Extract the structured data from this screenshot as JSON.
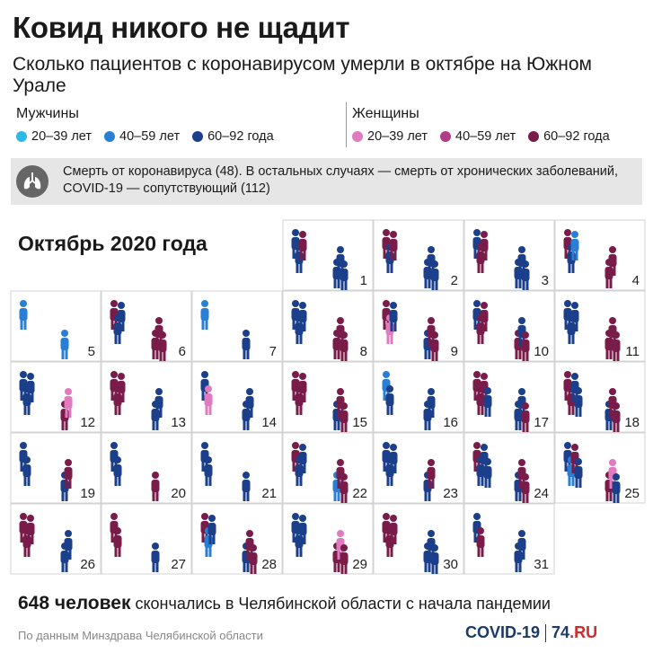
{
  "title": "Ковид никого не щадит",
  "subtitle": "Сколько пациентов с коронавирусом умерли в октябре на Южном Урале",
  "legend": {
    "men": {
      "label": "Мужчины",
      "items": [
        {
          "label": "20–39 лет",
          "color": "#2fb8e6"
        },
        {
          "label": "40–59 лет",
          "color": "#2a7fd4"
        },
        {
          "label": "60–92 года",
          "color": "#1b3f8a"
        }
      ]
    },
    "women": {
      "label": "Женщины",
      "items": [
        {
          "label": "20–39 лет",
          "color": "#e07bbf"
        },
        {
          "label": "40–59 лет",
          "color": "#b23b87"
        },
        {
          "label": "60–92 года",
          "color": "#7a1c4a"
        }
      ]
    }
  },
  "note": {
    "icon": "lungs-icon",
    "text": "Смерть от коронавируса (48). В остальных случаях — смерть от хронических заболеваний, COVID-19 — сопутствующий (112)"
  },
  "month_label": "Октябрь 2020 года",
  "chart_data": {
    "type": "calendar-pictogram",
    "series_colors": {
      "m2039": "#2fb8e6",
      "m4059": "#2a7fd4",
      "m6092": "#1b3f8a",
      "w2039": "#e07bbf",
      "w4059": "#b23b87",
      "w6092": "#7a1c4a"
    },
    "days": [
      {
        "day": 1,
        "people": [
          "m6092",
          "m6092",
          "m6092",
          "m6092",
          "w6092",
          "m6092"
        ]
      },
      {
        "day": 2,
        "people": [
          "w6092",
          "m6092",
          "m6092",
          "m6092",
          "w6092",
          "m6092"
        ]
      },
      {
        "day": 3,
        "people": [
          "m6092",
          "m6092",
          "w6092",
          "m6092",
          "w6092",
          "m6092"
        ]
      },
      {
        "day": 4,
        "people": [
          "w6092",
          "w6092",
          "m6092",
          "w6092",
          "m4059"
        ]
      },
      {
        "day": 5,
        "people": [
          "m4059",
          "m4059"
        ]
      },
      {
        "day": 6,
        "people": [
          "w6092",
          "w6092",
          "m6092",
          "w6092",
          "m6092",
          "w6092"
        ]
      },
      {
        "day": 7,
        "people": [
          "m4059",
          "m6092"
        ]
      },
      {
        "day": 8,
        "people": [
          "m6092",
          "w6092",
          "m6092",
          "w6092",
          "m6092",
          "w6092"
        ]
      },
      {
        "day": 9,
        "people": [
          "w6092",
          "m6092",
          "w2039",
          "w6092",
          "m6092",
          "w6092"
        ]
      },
      {
        "day": 10,
        "people": [
          "m6092",
          "w6092",
          "w6092",
          "m6092",
          "w6092",
          "w6092"
        ]
      },
      {
        "day": 11,
        "people": [
          "m6092",
          "w6092",
          "m6092",
          "w6092",
          "m6092",
          "w6092"
        ]
      },
      {
        "day": 12,
        "people": [
          "m6092",
          "w6092",
          "m6092",
          "w2039",
          "m6092"
        ]
      },
      {
        "day": 13,
        "people": [
          "w6092",
          "m6092",
          "w6092",
          "m6092",
          "w6092"
        ]
      },
      {
        "day": 14,
        "people": [
          "m6092",
          "m6092",
          "w2039",
          "m6092"
        ]
      },
      {
        "day": 15,
        "people": [
          "w6092",
          "m6092",
          "w6092",
          "w6092",
          "w6092",
          "w6092"
        ]
      },
      {
        "day": 16,
        "people": [
          "m4059",
          "m6092",
          "m6092",
          "m6092"
        ]
      },
      {
        "day": 17,
        "people": [
          "w6092",
          "m6092",
          "w6092",
          "m6092",
          "w6092",
          "w6092",
          "m6092"
        ]
      },
      {
        "day": 18,
        "people": [
          "w6092",
          "m6092",
          "w6092",
          "w6092",
          "m6092",
          "w6092",
          "m6092"
        ]
      },
      {
        "day": 19,
        "people": [
          "m6092",
          "m6092",
          "m6092",
          "w6092"
        ]
      },
      {
        "day": 20,
        "people": [
          "m6092",
          "w6092",
          "m6092"
        ]
      },
      {
        "day": 21,
        "people": [
          "m6092",
          "m6092",
          "m6092"
        ]
      },
      {
        "day": 22,
        "people": [
          "w6092",
          "m4059",
          "m6092",
          "w6092",
          "m6092",
          "w6092"
        ]
      },
      {
        "day": 23,
        "people": [
          "m6092",
          "m6092",
          "m6092",
          "w6092",
          "m6092"
        ]
      },
      {
        "day": 24,
        "people": [
          "w6092",
          "m6092",
          "m6092",
          "w6092",
          "m6092",
          "w6092",
          "m6092"
        ]
      },
      {
        "day": 25,
        "people": [
          "m6092",
          "w6092",
          "m4059",
          "w2039",
          "w6092",
          "m6092",
          "m6092"
        ]
      },
      {
        "day": 26,
        "people": [
          "w6092",
          "m6092",
          "w6092",
          "m6092",
          "w6092"
        ]
      },
      {
        "day": 27,
        "people": [
          "w6092",
          "m6092",
          "w6092"
        ]
      },
      {
        "day": 28,
        "people": [
          "w6092",
          "m6092",
          "m4059",
          "w6092",
          "m6092",
          "w6092"
        ]
      },
      {
        "day": 29,
        "people": [
          "m6092",
          "w6092",
          "m6092",
          "w2039",
          "m6092",
          "w6092"
        ]
      },
      {
        "day": 30,
        "people": [
          "w6092",
          "m6092",
          "w6092",
          "m6092",
          "w6092",
          "m6092"
        ]
      },
      {
        "day": 31,
        "people": [
          "m6092",
          "m6092",
          "w6092",
          "m6092"
        ]
      }
    ]
  },
  "footer": {
    "count": "648 человек",
    "text": " скончались в Челябинской области с начала пандемии"
  },
  "source": "По данным Минздрава Челябинской области",
  "logo": {
    "covid": "COVID-19",
    "brand_num": "74",
    "brand_tld": ".RU"
  }
}
